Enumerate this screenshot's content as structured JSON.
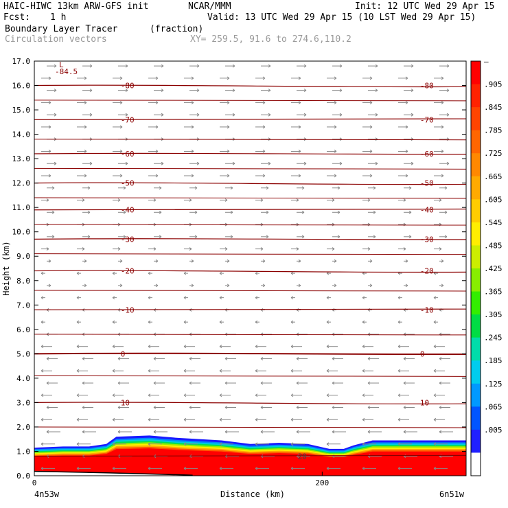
{
  "header": {
    "model": "HAIC-HIWC 13km ARW-GFS init",
    "org": "NCAR/MMM",
    "init": "Init: 12 UTC Wed 29 Apr 15",
    "fcst_label": "Fcst:",
    "fcst_value": "1 h",
    "valid": "Valid: 13 UTC Wed 29 Apr 15 (10 LST Wed 29 Apr 15)",
    "field": "Boundary Layer Tracer",
    "field_units": "(fraction)",
    "vectors": "Circulation vectors",
    "xy": "XY= 259.5, 91.6 to 274.6,110.2"
  },
  "chart_data": {
    "type": "cross-section",
    "ylabel": "Height (km)",
    "xlabel": "Distance (km)",
    "ylim": [
      0,
      17
    ],
    "xlim": [
      0,
      300
    ],
    "yticks": [
      "0.0",
      "1.0",
      "2.0",
      "3.0",
      "4.0",
      "5.0",
      "6.0",
      "7.0",
      "8.0",
      "9.0",
      "10.0",
      "11.0",
      "12.0",
      "13.0",
      "14.0",
      "15.0",
      "16.0",
      "17.0"
    ],
    "xticks": [
      {
        "value": 0,
        "label": "0"
      },
      {
        "value": 200,
        "label": "200"
      }
    ],
    "x_end_labels": {
      "left": "4n53w",
      "right": "6n51w"
    },
    "temperature_contours": [
      {
        "height": 16.0,
        "label": "-80"
      },
      {
        "height": 14.6,
        "label": "-70"
      },
      {
        "height": 13.2,
        "label": "-60"
      },
      {
        "height": 12.0,
        "label": "-50"
      },
      {
        "height": 10.9,
        "label": "-40"
      },
      {
        "height": 9.7,
        "label": "-30"
      },
      {
        "height": 8.4,
        "label": "-20"
      },
      {
        "height": 6.8,
        "label": "-10"
      },
      {
        "height": 5.0,
        "label": "0"
      },
      {
        "height": 3.0,
        "label": "10"
      },
      {
        "height": 0.8,
        "label": "20"
      }
    ],
    "low_marker": {
      "symbol": "L",
      "value": "-84.5"
    },
    "colorbar_labels": [
      "–",
      ".905",
      ".845",
      ".785",
      ".725",
      ".665",
      ".605",
      ".545",
      ".485",
      ".425",
      ".365",
      ".305",
      ".245",
      ".185",
      ".125",
      ".065",
      ".005"
    ],
    "colorbar_colors": [
      "#ffffff",
      "#2020ff",
      "#0055ff",
      "#0099ff",
      "#00ccee",
      "#00ddaa",
      "#00dd44",
      "#33ee00",
      "#88ee00",
      "#ccee00",
      "#ffee00",
      "#ffcc00",
      "#ffaa00",
      "#ff8800",
      "#ff6600",
      "#ff4400",
      "#ff2200",
      "#ff0000"
    ],
    "tracer_top_profile": [
      {
        "x": 0,
        "h": 1.15
      },
      {
        "x": 20,
        "h": 1.2
      },
      {
        "x": 38,
        "h": 1.2
      },
      {
        "x": 50,
        "h": 1.3
      },
      {
        "x": 57,
        "h": 1.6
      },
      {
        "x": 80,
        "h": 1.65
      },
      {
        "x": 100,
        "h": 1.55
      },
      {
        "x": 130,
        "h": 1.45
      },
      {
        "x": 150,
        "h": 1.3
      },
      {
        "x": 170,
        "h": 1.35
      },
      {
        "x": 190,
        "h": 1.3
      },
      {
        "x": 205,
        "h": 1.1
      },
      {
        "x": 215,
        "h": 1.1
      },
      {
        "x": 222,
        "h": 1.25
      },
      {
        "x": 235,
        "h": 1.45
      },
      {
        "x": 270,
        "h": 1.45
      },
      {
        "x": 300,
        "h": 1.45
      }
    ],
    "tropopause_step_note": "",
    "colors": {
      "contour": "#8b0000",
      "vector": "#888888",
      "frame": "#000000"
    }
  }
}
